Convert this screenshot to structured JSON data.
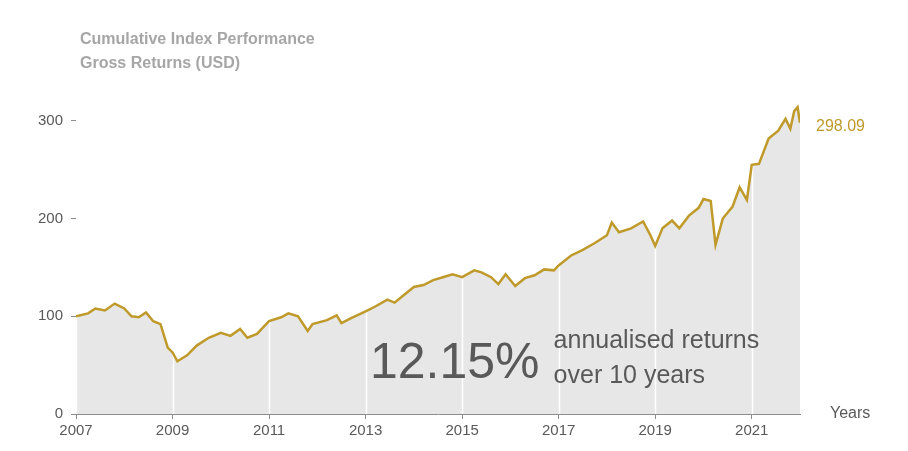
{
  "chart_data": {
    "type": "line",
    "title": "Cumulative Index Performance",
    "subtitle": "Gross Returns (USD)",
    "x_label": "Years",
    "annotations": {
      "end_value": "298.09",
      "headline": "12.15%",
      "caption": [
        "annualised returns",
        "over 10 years"
      ]
    },
    "x": [
      2007.0,
      2007.25,
      2007.4,
      2007.6,
      2007.8,
      2008.0,
      2008.15,
      2008.3,
      2008.45,
      2008.6,
      2008.75,
      2008.9,
      2009.0,
      2009.1,
      2009.3,
      2009.5,
      2009.75,
      2010.0,
      2010.2,
      2010.4,
      2010.55,
      2010.75,
      2010.9,
      2011.0,
      2011.25,
      2011.4,
      2011.6,
      2011.8,
      2011.9,
      2012.2,
      2012.4,
      2012.5,
      2012.7,
      2013.0,
      2013.2,
      2013.45,
      2013.6,
      2013.8,
      2014.0,
      2014.2,
      2014.4,
      2014.6,
      2014.8,
      2015.0,
      2015.25,
      2015.4,
      2015.6,
      2015.75,
      2015.9,
      2016.1,
      2016.3,
      2016.5,
      2016.7,
      2016.9,
      2017.0,
      2017.25,
      2017.5,
      2017.75,
      2018.0,
      2018.1,
      2018.25,
      2018.5,
      2018.75,
      2018.9,
      2019.0,
      2019.15,
      2019.35,
      2019.5,
      2019.7,
      2019.9,
      2020.0,
      2020.15,
      2020.25,
      2020.4,
      2020.6,
      2020.75,
      2020.9,
      2021.0,
      2021.15,
      2021.35,
      2021.55,
      2021.7,
      2021.8,
      2021.88,
      2021.95,
      2022.0
    ],
    "values": [
      100,
      103,
      108,
      106,
      113,
      108,
      100,
      99,
      104,
      95,
      92,
      68,
      63,
      54,
      60,
      70,
      78,
      83,
      80,
      87,
      78,
      82,
      90,
      95,
      99,
      103,
      100,
      85,
      92,
      96,
      101,
      93,
      98,
      105,
      110,
      117,
      114,
      122,
      130,
      132,
      137,
      140,
      143,
      140,
      147,
      145,
      140,
      133,
      143,
      131,
      139,
      142,
      148,
      147,
      152,
      162,
      168,
      175,
      183,
      196,
      186,
      190,
      197,
      183,
      172,
      190,
      198,
      190,
      203,
      211,
      220,
      218,
      173,
      200,
      212,
      232,
      219,
      255,
      256,
      282,
      290,
      302,
      292,
      310,
      314,
      298.09
    ],
    "color": "#bf9a2a",
    "xlim": [
      2007,
      2022
    ],
    "xticks": [
      2007,
      2009,
      2011,
      2013,
      2015,
      2017,
      2019,
      2021
    ],
    "ylim": [
      0,
      350
    ],
    "yticks": [
      0,
      100,
      200,
      300
    ],
    "grid": true
  }
}
